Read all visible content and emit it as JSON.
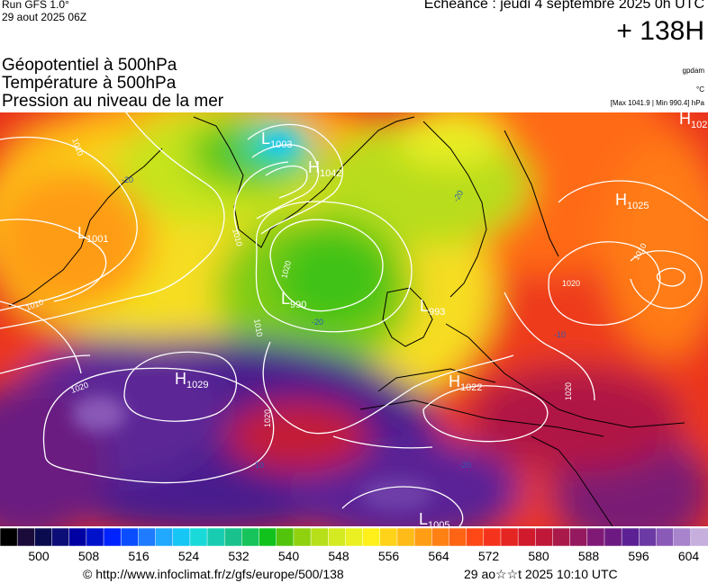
{
  "header": {
    "run": "Run GFS 1.0°",
    "run_date": "29 aout 2025 06Z",
    "echeance": "Echéance : jeudi 4 septembre 2025 0h UTC",
    "horizon": "+ 138H"
  },
  "titles": {
    "line1": "Géopotentiel à 500hPa",
    "line2": "Température à 500hPa",
    "line3": "Pression au niveau de la mer"
  },
  "units": {
    "geopotential": "gpdam",
    "temperature": "°C",
    "range": "[Max 1041.9 | Min 990.4] hPa"
  },
  "map": {
    "pressure_centers": [
      {
        "type": "L",
        "value": "1003"
      },
      {
        "type": "H",
        "value": "1042"
      },
      {
        "type": "L",
        "value": "1001"
      },
      {
        "type": "L",
        "value": "990"
      },
      {
        "type": "L",
        "value": "993"
      },
      {
        "type": "H",
        "value": "1029"
      },
      {
        "type": "H",
        "value": "1022"
      },
      {
        "type": "H",
        "value": "1025"
      },
      {
        "type": "H",
        "value": "102"
      },
      {
        "type": "L",
        "value": "1005"
      }
    ],
    "isobar_labels": [
      "1010",
      "1010",
      "1020",
      "1010",
      "1020",
      "1020",
      "1010",
      "1020",
      "1010",
      "1020"
    ],
    "isotherm_labels": [
      "-20",
      "-20",
      "-20",
      "-10",
      "-10",
      "-20"
    ]
  },
  "scale": {
    "colors": [
      "#000000",
      "#1a0b3a",
      "#0a0a4f",
      "#0d0d78",
      "#0000a3",
      "#0011cc",
      "#0022ff",
      "#0a4dff",
      "#1f7bff",
      "#21a8ff",
      "#16c6f5",
      "#1ad9d9",
      "#18ccb2",
      "#19c28c",
      "#16c45b",
      "#11c21c",
      "#52c40c",
      "#8fd10f",
      "#b7e01a",
      "#d4eb22",
      "#ebf022",
      "#fff01c",
      "#ffd31a",
      "#ffbb17",
      "#ff9e14",
      "#ff8114",
      "#ff6414",
      "#ff4816",
      "#f5331c",
      "#e52522",
      "#d11a2b",
      "#c01838",
      "#a91a4a",
      "#94195f",
      "#801876",
      "#6c1a82",
      "#5c2094",
      "#6c3aa4",
      "#8a5ab8",
      "#a884cc",
      "#c6aedd"
    ],
    "labels": [
      "500",
      "508",
      "516",
      "524",
      "532",
      "540",
      "548",
      "556",
      "564",
      "572",
      "580",
      "588",
      "596",
      "604"
    ]
  },
  "footer": {
    "copyright": "© http://www.infoclimat.fr/z/gfs/europe/500/138",
    "timestamp": "29 ao☆☆t 2025 10:10 UTC"
  }
}
